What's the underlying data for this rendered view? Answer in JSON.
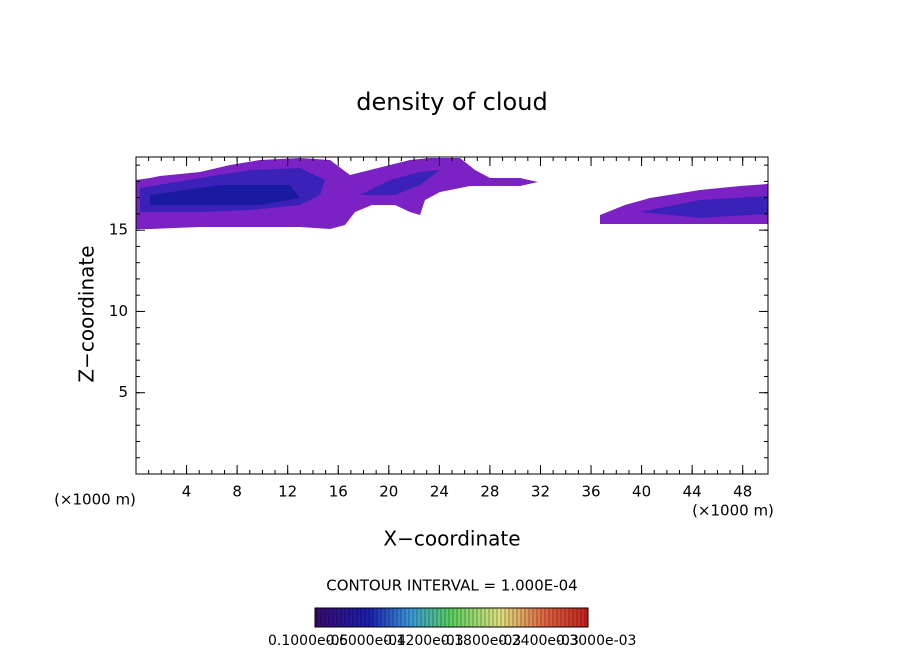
{
  "chart_data": {
    "type": "contour",
    "title": "density of cloud",
    "xlabel": "X−coordinate",
    "ylabel": "Z−coordinate",
    "x_unit_label": "(×1000 m)",
    "xlim": [
      0,
      50
    ],
    "ylim": [
      0,
      19.5
    ],
    "xticks": [
      4,
      8,
      12,
      16,
      20,
      24,
      28,
      32,
      36,
      40,
      44,
      48
    ],
    "yticks": [
      5,
      10,
      15
    ],
    "contour_interval_label": "CONTOUR INTERVAL = 1.000E-04",
    "colorbar_labels": [
      "0.1000e-05",
      "0.6000e-04",
      "0.1200e-03",
      "0.1800e-03",
      "0.2400e-03",
      "0.3000e-03"
    ]
  }
}
